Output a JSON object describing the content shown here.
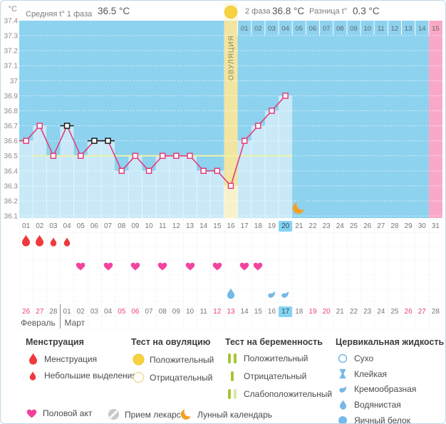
{
  "header": {
    "unit": "°C",
    "avg_phase1_label": "Средняя t° 1 фаза",
    "avg_phase1_value": "36.5 °C",
    "phase2_label": "2 фаза",
    "phase2_value": "36.8 °C",
    "diff_label": "Разница t°",
    "diff_value": "0.3 °C"
  },
  "chart_data": {
    "type": "line",
    "ylabel": "°C",
    "ylim": [
      36.1,
      37.4
    ],
    "ytick_step": 0.1,
    "yticks": [
      "37.4",
      "37.3",
      "37.2",
      "37.1",
      "37",
      "36.9",
      "36.8",
      "36.7",
      "36.6",
      "36.5",
      "36.4",
      "36.3",
      "36.2",
      "36.1"
    ],
    "total_days": 31,
    "series": [
      {
        "name": "bbt",
        "values": [
          36.6,
          36.7,
          36.5,
          36.7,
          36.5,
          36.6,
          36.6,
          36.4,
          36.5,
          36.4,
          36.5,
          36.5,
          36.5,
          36.4,
          36.4,
          36.3,
          36.6,
          36.7,
          36.8,
          36.9
        ],
        "flagged_days": [
          4,
          6,
          7
        ]
      }
    ],
    "coverline": {
      "value": 36.5,
      "from_day": 2,
      "to_day": 20
    },
    "ovulation": {
      "day": 16,
      "label": "ОВУЛЯЦИЯ",
      "test_result": "positive"
    },
    "dpo": {
      "start_day": 17,
      "labels": [
        "01",
        "02",
        "03",
        "04",
        "05",
        "06",
        "07",
        "08",
        "09",
        "10",
        "11",
        "12",
        "13",
        "14",
        "15"
      ]
    },
    "predicted_period_day": 31,
    "lunar_day": 21,
    "today_cycle_day": 20,
    "grid": "dotted-horizontal",
    "legend_position": "bottom"
  },
  "rows": {
    "cycle_days": {
      "labels": [
        "01",
        "02",
        "03",
        "04",
        "05",
        "06",
        "07",
        "08",
        "09",
        "10",
        "11",
        "12",
        "13",
        "14",
        "15",
        "16",
        "17",
        "18",
        "19",
        "20",
        "21",
        "22",
        "23",
        "24",
        "25",
        "26",
        "27",
        "28",
        "29",
        "30",
        "31"
      ],
      "today_index": 19
    },
    "menstruation": [
      {
        "day": 1,
        "size": "large"
      },
      {
        "day": 2,
        "size": "large"
      },
      {
        "day": 3,
        "size": "small"
      },
      {
        "day": 4,
        "size": "small"
      }
    ],
    "intercourse_days": [
      5,
      7,
      9,
      11,
      13,
      15,
      17,
      18
    ],
    "cervical": [
      {
        "day": 16,
        "type": "watery"
      },
      {
        "day": 19,
        "type": "creamy"
      },
      {
        "day": 20,
        "type": "creamy"
      }
    ],
    "dates": {
      "labels": [
        "26",
        "27",
        "28",
        "01",
        "02",
        "03",
        "04",
        "05",
        "06",
        "07",
        "08",
        "09",
        "10",
        "11",
        "12",
        "13",
        "14",
        "15",
        "16",
        "17",
        "18",
        "19",
        "20",
        "21",
        "22",
        "23",
        "24",
        "25",
        "26",
        "27",
        "28"
      ],
      "weekend_indices": [
        0,
        1,
        7,
        8,
        14,
        15,
        21,
        22,
        28,
        29
      ],
      "today_index": 19,
      "months": [
        {
          "label": "Февраль",
          "from_index": 0,
          "to_index": 2
        },
        {
          "label": "Март",
          "from_index": 3,
          "to_index": 30
        }
      ]
    }
  },
  "legend": {
    "sections": [
      {
        "title": "Менструация",
        "items": [
          {
            "icon": "drop-red-large-icon",
            "label": "Менструация"
          },
          {
            "icon": "drop-red-small-icon",
            "label": "Небольшие выделения"
          }
        ]
      },
      {
        "title": "Тест на овуляцию",
        "items": [
          {
            "icon": "circle-yellow-filled-icon",
            "label": "Положительный"
          },
          {
            "icon": "circle-yellow-outline-icon",
            "label": "Отрицательный"
          }
        ]
      },
      {
        "title": "Тест на беременность",
        "items": [
          {
            "icon": "two-green-bars-icon",
            "label": "Положительный"
          },
          {
            "icon": "one-green-bar-icon",
            "label": "Отрицательный"
          },
          {
            "icon": "green-and-pale-bar-icon",
            "label": "Слабоположительный"
          }
        ]
      },
      {
        "title": "Цервикальная жидкость",
        "items": [
          {
            "icon": "circle-blue-outline-icon",
            "label": "Сухо"
          },
          {
            "icon": "hourglass-blue-icon",
            "label": "Клейкая"
          },
          {
            "icon": "comma-blue-icon",
            "label": "Кремообразная"
          },
          {
            "icon": "drop-blue-icon",
            "label": "Водянистая"
          },
          {
            "icon": "circle-blue-filled-icon",
            "label": "Яичный белок"
          }
        ]
      }
    ],
    "footer_items": [
      {
        "icon": "heart-icon",
        "label": "Половой акт"
      },
      {
        "icon": "pill-icon",
        "label": "Прием лекарств"
      },
      {
        "icon": "moon-icon",
        "label": "Лунный календарь"
      }
    ]
  },
  "colors": {
    "accent_pink": "#e23c78",
    "sky_blue": "#8dd2ef",
    "bar_blue": "#c9e9f8",
    "band_yellow": "#f2e5a2",
    "band_yellow_light": "#f8f2cc",
    "band_header_cream": "#fcf7dc",
    "period_pink": "#f9a9c7",
    "coverline_yellow": "#eff3a6",
    "menses_red": "#f0393c",
    "heart_pink": "#f2449e",
    "fluid_blue": "#74b9e8",
    "test_yellow": "#f6d33c",
    "test_yellow_outline": "#f0dfa0",
    "test_green": "#a4c636",
    "test_green_weak": "#d9e8a8",
    "moon_orange": "#f5a024",
    "today_blue": "#85d3f3",
    "weekend_pink": "#e8437a",
    "pill_gray": "#c9c9c9",
    "ovulation_text": "#8a8a4f",
    "axis_text": "#8a8a8a",
    "day_text": "#777777"
  }
}
